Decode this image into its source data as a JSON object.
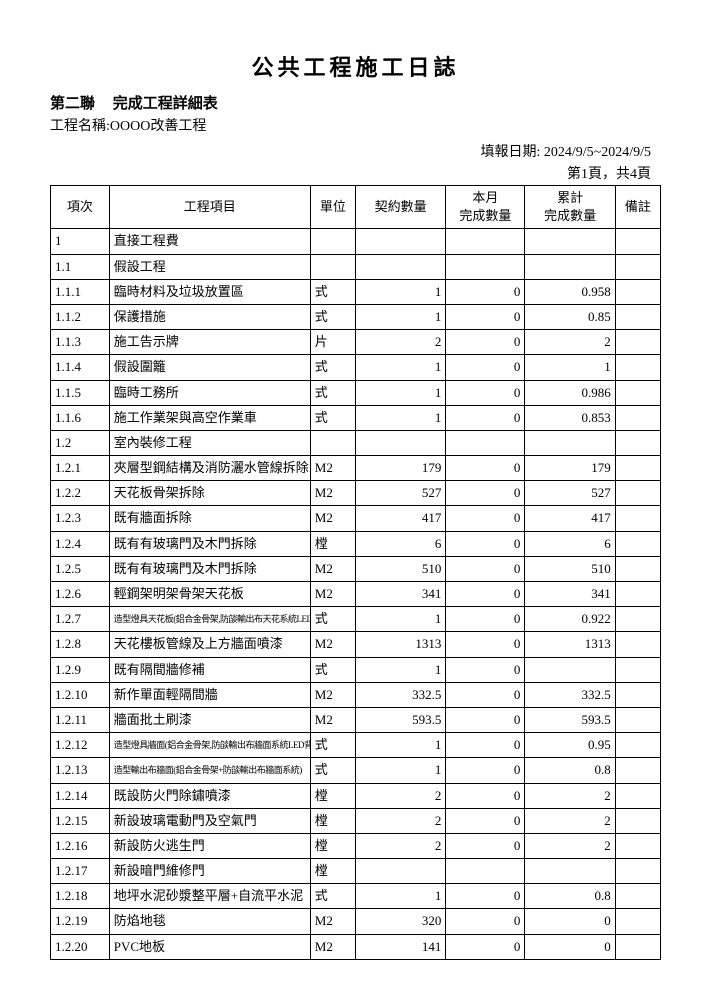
{
  "title": "公共工程施工日誌",
  "part_label": "第二聯",
  "subtitle": "完成工程詳細表",
  "project_label": "工程名稱:",
  "project_name": "OOOO改善工程",
  "report_date_label": "填報日期:",
  "report_date": "2024/9/5~2024/9/5",
  "page_info": "第1頁，共4頁",
  "headers": {
    "idx": "項次",
    "item": "工程項目",
    "unit": "單位",
    "qty": "契約數量",
    "month": "本月\n完成數量",
    "cum": "累計\n完成數量",
    "note": "備註"
  },
  "rows": [
    {
      "idx": "1",
      "item": "直接工程費",
      "unit": "",
      "qty": "",
      "month": "",
      "cum": "",
      "note": ""
    },
    {
      "idx": "1.1",
      "item": "假設工程",
      "unit": "",
      "qty": "",
      "month": "",
      "cum": "",
      "note": ""
    },
    {
      "idx": "1.1.1",
      "item": "臨時材料及垃圾放置區",
      "unit": "式",
      "qty": "1",
      "month": "0",
      "cum": "0.958",
      "note": ""
    },
    {
      "idx": "1.1.2",
      "item": "保護措施",
      "unit": "式",
      "qty": "1",
      "month": "0",
      "cum": "0.85",
      "note": ""
    },
    {
      "idx": "1.1.3",
      "item": "施工告示牌",
      "unit": "片",
      "qty": "2",
      "month": "0",
      "cum": "2",
      "note": ""
    },
    {
      "idx": "1.1.4",
      "item": "假設圍籬",
      "unit": "式",
      "qty": "1",
      "month": "0",
      "cum": "1",
      "note": ""
    },
    {
      "idx": "1.1.5",
      "item": "臨時工務所",
      "unit": "式",
      "qty": "1",
      "month": "0",
      "cum": "0.986",
      "note": ""
    },
    {
      "idx": "1.1.6",
      "item": "施工作業架與高空作業車",
      "unit": "式",
      "qty": "1",
      "month": "0",
      "cum": "0.853",
      "note": ""
    },
    {
      "idx": "1.2",
      "item": "室內裝修工程",
      "unit": "",
      "qty": "",
      "month": "",
      "cum": "",
      "note": ""
    },
    {
      "idx": "1.2.1",
      "item": "夾層型鋼結構及消防灑水管線拆除",
      "unit": "M2",
      "qty": "179",
      "month": "0",
      "cum": "179",
      "note": ""
    },
    {
      "idx": "1.2.2",
      "item": "天花板骨架拆除",
      "unit": "M2",
      "qty": "527",
      "month": "0",
      "cum": "527",
      "note": ""
    },
    {
      "idx": "1.2.3",
      "item": "既有牆面拆除",
      "unit": "M2",
      "qty": "417",
      "month": "0",
      "cum": "417",
      "note": ""
    },
    {
      "idx": "1.2.4",
      "item": "既有有玻璃門及木門拆除",
      "unit": "樘",
      "qty": "6",
      "month": "0",
      "cum": "6",
      "note": ""
    },
    {
      "idx": "1.2.5",
      "item": "既有有玻璃門及木門拆除",
      "unit": "M2",
      "qty": "510",
      "month": "0",
      "cum": "510",
      "note": ""
    },
    {
      "idx": "1.2.6",
      "item": "輕鋼架明架骨架天花板",
      "unit": "M2",
      "qty": "341",
      "month": "0",
      "cum": "341",
      "note": ""
    },
    {
      "idx": "1.2.7",
      "item": "造型燈具天花板(鋁合金骨架,防燄輸出布天花系統LED背光",
      "unit": "式",
      "qty": "1",
      "month": "0",
      "cum": "0.922",
      "note": "",
      "small": true
    },
    {
      "idx": "1.2.8",
      "item": "天花樓板管線及上方牆面噴漆",
      "unit": "M2",
      "qty": "1313",
      "month": "0",
      "cum": "1313",
      "note": ""
    },
    {
      "idx": "1.2.9",
      "item": "既有隔間牆修補",
      "unit": "式",
      "qty": "1",
      "month": "0",
      "cum": "",
      "note": ""
    },
    {
      "idx": "1.2.10",
      "item": "新作單面輕隔間牆",
      "unit": "M2",
      "qty": "332.5",
      "month": "0",
      "cum": "332.5",
      "note": ""
    },
    {
      "idx": "1.2.11",
      "item": "牆面批土刷漆",
      "unit": "M2",
      "qty": "593.5",
      "month": "0",
      "cum": "593.5",
      "note": ""
    },
    {
      "idx": "1.2.12",
      "item": "造型燈具牆面(鋁合金骨架,防燄輸出布牆面系統LED背光)",
      "unit": "式",
      "qty": "1",
      "month": "0",
      "cum": "0.95",
      "note": "",
      "small": true
    },
    {
      "idx": "1.2.13",
      "item": "造型輸出布牆面(鋁合金骨架+防燄輸出布牆面系統)",
      "unit": "式",
      "qty": "1",
      "month": "0",
      "cum": "0.8",
      "note": "",
      "small": true
    },
    {
      "idx": "1.2.14",
      "item": "既設防火門除鏽噴漆",
      "unit": "樘",
      "qty": "2",
      "month": "0",
      "cum": "2",
      "note": ""
    },
    {
      "idx": "1.2.15",
      "item": "新設玻璃電動門及空氣門",
      "unit": "樘",
      "qty": "2",
      "month": "0",
      "cum": "2",
      "note": ""
    },
    {
      "idx": "1.2.16",
      "item": "新設防火逃生門",
      "unit": "樘",
      "qty": "2",
      "month": "0",
      "cum": "2",
      "note": ""
    },
    {
      "idx": "1.2.17",
      "item": "新設暗門維修門",
      "unit": "樘",
      "qty": "",
      "month": "",
      "cum": "",
      "note": ""
    },
    {
      "idx": "1.2.18",
      "item": "地坪水泥砂漿整平層+自流平水泥",
      "unit": "式",
      "qty": "1",
      "month": "0",
      "cum": "0.8",
      "note": ""
    },
    {
      "idx": "1.2.19",
      "item": "防焰地毯",
      "unit": "M2",
      "qty": "320",
      "month": "0",
      "cum": "0",
      "note": ""
    },
    {
      "idx": "1.2.20",
      "item": "PVC地板",
      "unit": "M2",
      "qty": "141",
      "month": "0",
      "cum": "0",
      "note": ""
    }
  ]
}
